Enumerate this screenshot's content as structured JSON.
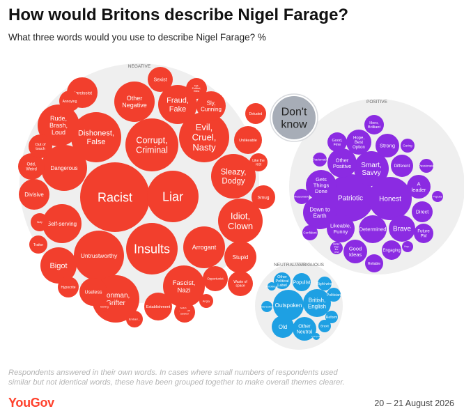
{
  "header": {
    "title": "How would Britons describe Nigel Farage?",
    "subtitle": "What three words would you use to describe Nigel Farage? %"
  },
  "footer": {
    "note": "Respondents answered in their own words. In cases where small numbers of respondents used similar but not identical words, these have been grouped together to make overall themes clearer.",
    "logo": "YouGov",
    "date": "20 – 21 August 2026"
  },
  "colors": {
    "negative": "#f23f2d",
    "positive": "#8b2be2",
    "neutral": "#1ea0e3",
    "dont_know": "#a7adb7",
    "group_background": "#efefef"
  },
  "chart_data": {
    "type": "bubble",
    "title": "How would Britons describe Nigel Farage?",
    "groups": [
      {
        "name": "NEGATIVE",
        "items": [
          {
            "label": "Racist"
          },
          {
            "label": "Liar"
          },
          {
            "label": "Insults"
          },
          {
            "label": "Corrupt, Criminal"
          },
          {
            "label": "Evil, Cruel, Nasty"
          },
          {
            "label": "Dishonest, False"
          },
          {
            "label": "Sleazy, Dodgy"
          },
          {
            "label": "Idiot, Clown"
          },
          {
            "label": "Untrustworthy"
          },
          {
            "label": "Arrogant"
          },
          {
            "label": "Dangerous"
          },
          {
            "label": "Conman, Grifter"
          },
          {
            "label": "Fraud, Fake"
          },
          {
            "label": "Other Negative"
          },
          {
            "label": "Fascist, Nazi"
          },
          {
            "label": "Bigot"
          },
          {
            "label": "Self-serving"
          },
          {
            "label": "Rude, Brash, Loud"
          },
          {
            "label": "Divisive"
          },
          {
            "label": "Stupid"
          },
          {
            "label": "Sly, Cunning"
          },
          {
            "label": "Narcissist"
          },
          {
            "label": "Smug"
          },
          {
            "label": "Useless"
          },
          {
            "label": "Sexist"
          },
          {
            "label": "Unlikeable"
          },
          {
            "label": "Establishment"
          },
          {
            "label": "Opportunist"
          },
          {
            "label": "Odd, Weird"
          },
          {
            "label": "Out of touch"
          },
          {
            "label": "Waste of space"
          },
          {
            "label": "Deluded"
          },
          {
            "label": "Hypocrite"
          },
          {
            "label": "Traitor"
          },
          {
            "label": "Annoying"
          },
          {
            "label": "Like the rest"
          },
          {
            "label": "Attention seeker"
          },
          {
            "label": "Angry"
          },
          {
            "label": "Boring"
          },
          {
            "label": "Bully"
          },
          {
            "label": "Selfish"
          },
          {
            "label": "Toff, Entitled, Elitist"
          },
          {
            "label": "Embarr..."
          }
        ]
      },
      {
        "name": "POSITIVE",
        "items": [
          {
            "label": "Patriotic"
          },
          {
            "label": "Honest"
          },
          {
            "label": "Smart, Savvy"
          },
          {
            "label": "Brave"
          },
          {
            "label": "Determined"
          },
          {
            "label": "Down to Earth"
          },
          {
            "label": "Gets Things Done"
          },
          {
            "label": "Other Positive"
          },
          {
            "label": "Likeable, Funny"
          },
          {
            "label": "Strong"
          },
          {
            "label": "Good Ideas"
          },
          {
            "label": "A leader"
          },
          {
            "label": "Hope, Best Option"
          },
          {
            "label": "Different"
          },
          {
            "label": "Direct"
          },
          {
            "label": "Future PM"
          },
          {
            "label": "Good, Fine"
          },
          {
            "label": "Hero, Brilliant"
          },
          {
            "label": "Engaging"
          },
          {
            "label": "Reliable"
          },
          {
            "label": "Caring"
          },
          {
            "label": "Charismatic"
          },
          {
            "label": "Passionate"
          },
          {
            "label": "Reasonable"
          },
          {
            "label": "Confident"
          },
          {
            "label": "Popular"
          },
          {
            "label": "Better than the rest"
          },
          {
            "label": "Hop..."
          }
        ]
      },
      {
        "name": "NEUTRAL/AMBIGUOUS",
        "items": [
          {
            "label": "Outspoken"
          },
          {
            "label": "British, English"
          },
          {
            "label": "Old"
          },
          {
            "label": "Other Neutral"
          },
          {
            "label": "Populist"
          },
          {
            "label": "Other Political Label"
          },
          {
            "label": "Right-wing"
          },
          {
            "label": "Politician"
          },
          {
            "label": "Reform"
          },
          {
            "label": "Brexit"
          },
          {
            "label": "Interesting"
          },
          {
            "label": "Trump-like"
          },
          {
            "label": "Ambitious"
          }
        ]
      },
      {
        "name": "DONT_KNOW",
        "items": [
          {
            "label": "Don't know"
          }
        ]
      }
    ]
  }
}
